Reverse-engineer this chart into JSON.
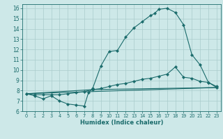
{
  "xlabel": "Humidex (Indice chaleur)",
  "bg_color": "#cde8e8",
  "grid_color": "#aacccc",
  "line_color": "#1a6b6b",
  "xlim": [
    -0.5,
    23.5
  ],
  "ylim": [
    6,
    16.4
  ],
  "xticks": [
    0,
    1,
    2,
    3,
    4,
    5,
    6,
    7,
    8,
    9,
    10,
    11,
    12,
    13,
    14,
    15,
    16,
    17,
    18,
    19,
    20,
    21,
    22,
    23
  ],
  "yticks": [
    6,
    7,
    8,
    9,
    10,
    11,
    12,
    13,
    14,
    15,
    16
  ],
  "curve1_x": [
    0,
    1,
    2,
    3,
    4,
    5,
    6,
    7,
    7.5,
    8,
    9,
    10,
    11,
    12,
    13,
    14,
    15,
    15.5,
    16,
    17,
    18,
    19,
    20,
    21,
    22,
    23
  ],
  "curve1_y": [
    7.7,
    7.5,
    7.2,
    7.5,
    7.0,
    6.7,
    6.6,
    6.5,
    7.8,
    8.2,
    10.4,
    11.8,
    11.9,
    13.2,
    14.1,
    14.7,
    15.3,
    15.5,
    15.9,
    16.0,
    15.6,
    14.4,
    11.5,
    10.5,
    8.8,
    8.3
  ],
  "curve2_x": [
    0,
    1,
    2,
    3,
    4,
    5,
    6,
    7,
    8,
    9,
    10,
    11,
    12,
    13,
    14,
    15,
    16,
    17,
    18,
    19,
    20,
    21,
    22,
    23
  ],
  "curve2_y": [
    7.7,
    7.6,
    7.6,
    7.6,
    7.6,
    7.7,
    7.8,
    7.9,
    8.1,
    8.2,
    8.4,
    8.6,
    8.7,
    8.9,
    9.1,
    9.2,
    9.4,
    9.6,
    10.3,
    9.3,
    9.2,
    8.9,
    8.8,
    8.4
  ],
  "curve3_x": [
    0,
    23
  ],
  "curve3_y": [
    7.7,
    8.3
  ],
  "curve4_x": [
    0,
    8,
    23
  ],
  "curve4_y": [
    7.7,
    8.1,
    8.3
  ]
}
